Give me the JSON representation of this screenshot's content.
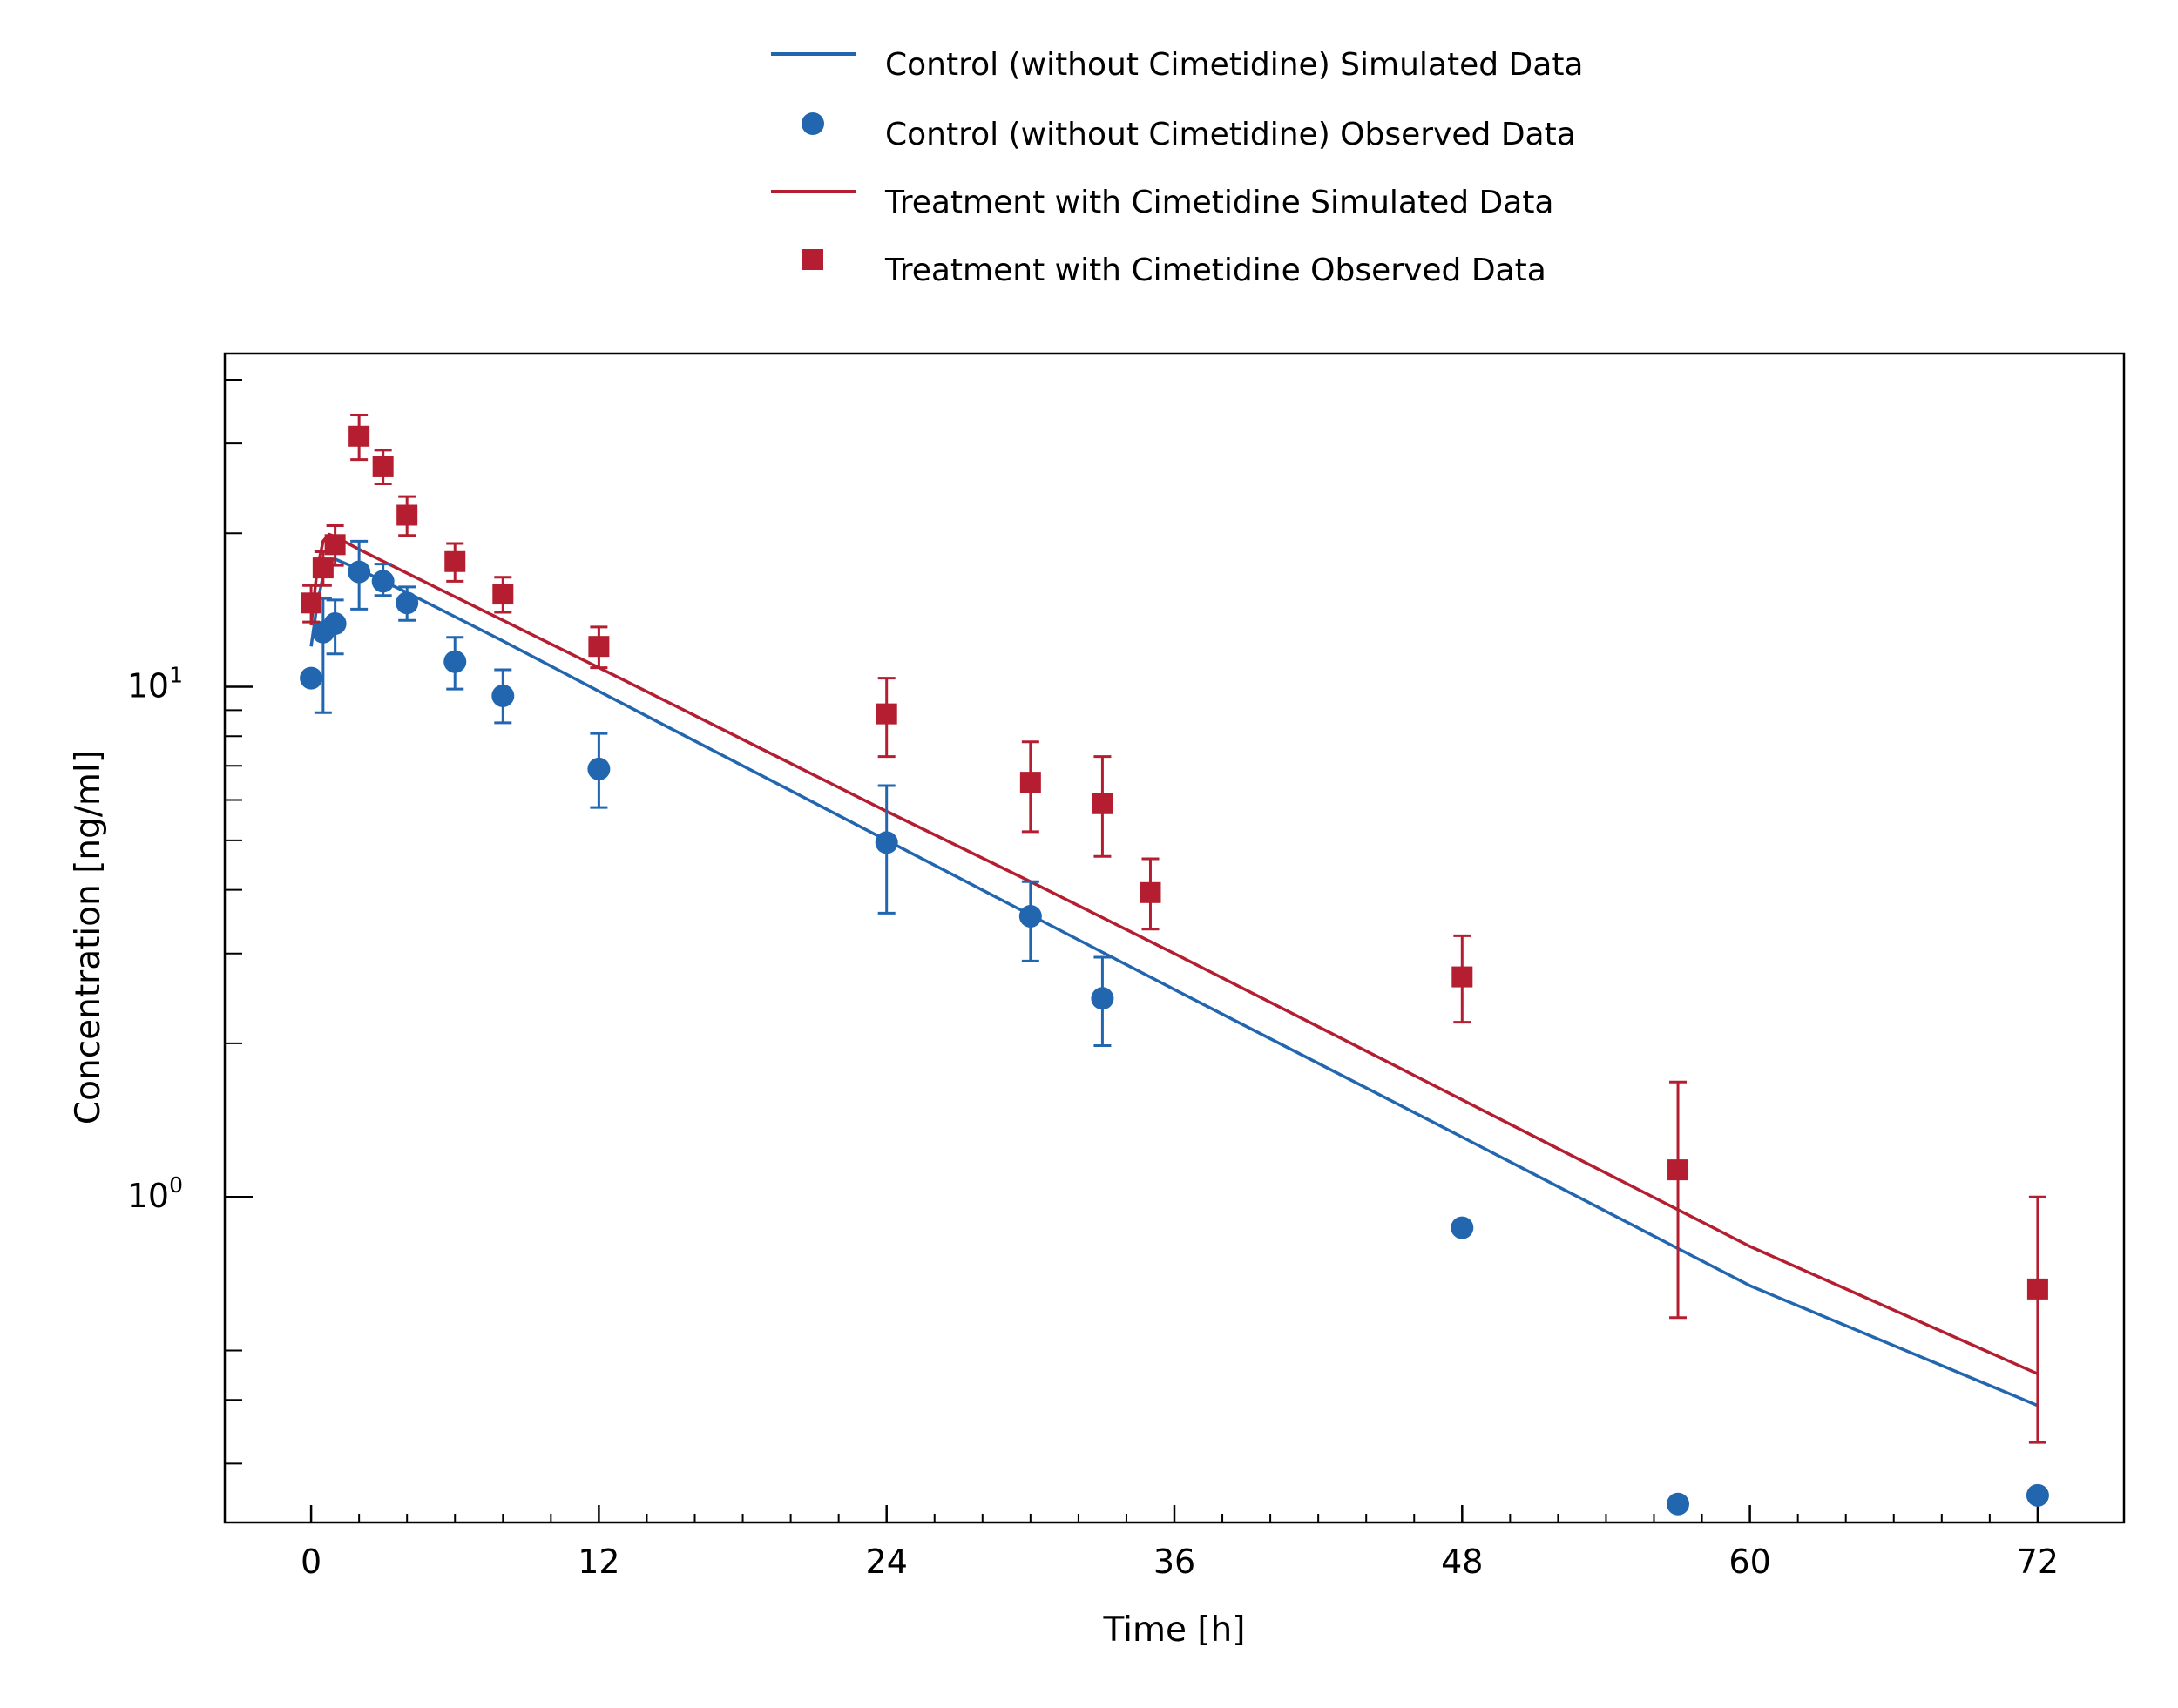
{
  "chart_data": {
    "type": "scatter",
    "xlabel": "Time [h]",
    "ylabel": "Concentration [ng/ml]",
    "xlim": [
      -3.6,
      75.6
    ],
    "ylim": [
      0.23,
      45
    ],
    "yscale": "log",
    "xticks": [
      0,
      12,
      24,
      36,
      48,
      60,
      72
    ],
    "xtick_labels": [
      "0",
      "12",
      "24",
      "36",
      "48",
      "60",
      "72"
    ],
    "x_minor_step": 2,
    "yticks": [
      {
        "value": 1,
        "base": "10",
        "exp": "0"
      },
      {
        "value": 10,
        "base": "10",
        "exp": "1"
      }
    ],
    "y_minor_ticks": [
      0.3,
      0.4,
      0.5,
      2,
      3,
      4,
      5,
      6,
      7,
      8,
      9,
      20,
      30,
      40
    ],
    "grid": false,
    "legend_position": "top-center",
    "colors": {
      "control": "#2266b0",
      "treatment": "#b41e30"
    },
    "series": [
      {
        "name": "Control (without Cimetidine) Simulated Data",
        "kind": "line",
        "color": "#2266b0",
        "x": [
          0,
          0.25,
          0.5,
          0.75,
          1,
          2,
          4,
          8,
          12,
          24,
          30,
          36,
          48,
          60,
          72
        ],
        "y": [
          12.0,
          14.5,
          16.5,
          17.7,
          17.8,
          17.0,
          15.3,
          12.3,
          9.8,
          5.0,
          3.57,
          2.55,
          1.31,
          0.67,
          0.39
        ]
      },
      {
        "name": "Control (without Cimetidine) Observed Data",
        "kind": "points",
        "marker": "circle",
        "color": "#2266b0",
        "x": [
          0,
          0.5,
          1,
          2,
          3,
          4,
          6,
          8,
          12,
          24,
          30,
          33,
          48,
          57,
          72
        ],
        "y": [
          10.4,
          12.8,
          13.3,
          16.8,
          16.1,
          14.6,
          11.2,
          9.6,
          6.9,
          4.95,
          3.55,
          2.45,
          0.87,
          0.25,
          0.26
        ],
        "err_low": [
          null,
          8.9,
          11.6,
          14.2,
          15.1,
          13.5,
          9.9,
          8.5,
          5.8,
          3.6,
          2.9,
          1.98,
          null,
          null,
          null
        ],
        "err_high": [
          null,
          14.9,
          14.8,
          19.3,
          17.4,
          15.7,
          12.5,
          10.8,
          8.1,
          6.4,
          4.15,
          2.95,
          null,
          null,
          null
        ]
      },
      {
        "name": "Treatment with Cimetidine Simulated Data",
        "kind": "line",
        "color": "#b41e30",
        "x": [
          0,
          0.25,
          0.5,
          0.75,
          1,
          2,
          4,
          8,
          12,
          24,
          30,
          36,
          48,
          60,
          72
        ],
        "y": [
          13.2,
          17.0,
          19.3,
          19.9,
          19.7,
          18.6,
          16.7,
          13.5,
          10.9,
          5.7,
          4.15,
          3.0,
          1.55,
          0.8,
          0.45
        ]
      },
      {
        "name": "Treatment with Cimetidine Observed Data",
        "kind": "points",
        "marker": "square",
        "color": "#b41e30",
        "x": [
          0,
          0.5,
          1,
          2,
          3,
          4,
          6,
          8,
          12,
          24,
          30,
          33,
          35,
          48,
          57,
          72
        ],
        "y": [
          14.6,
          17.1,
          19.0,
          31.0,
          27.0,
          21.7,
          17.6,
          15.2,
          12.0,
          8.85,
          6.5,
          5.9,
          3.95,
          2.7,
          1.13,
          0.66
        ],
        "err_low": [
          13.4,
          15.8,
          17.3,
          27.9,
          25.0,
          19.8,
          16.1,
          14.0,
          10.9,
          7.3,
          5.2,
          4.65,
          3.35,
          2.2,
          0.58,
          0.33
        ],
        "err_high": [
          15.8,
          18.4,
          20.7,
          34.1,
          29.1,
          23.6,
          19.1,
          16.4,
          13.1,
          10.4,
          7.8,
          7.3,
          4.6,
          3.25,
          1.68,
          1.0
        ]
      }
    ]
  }
}
